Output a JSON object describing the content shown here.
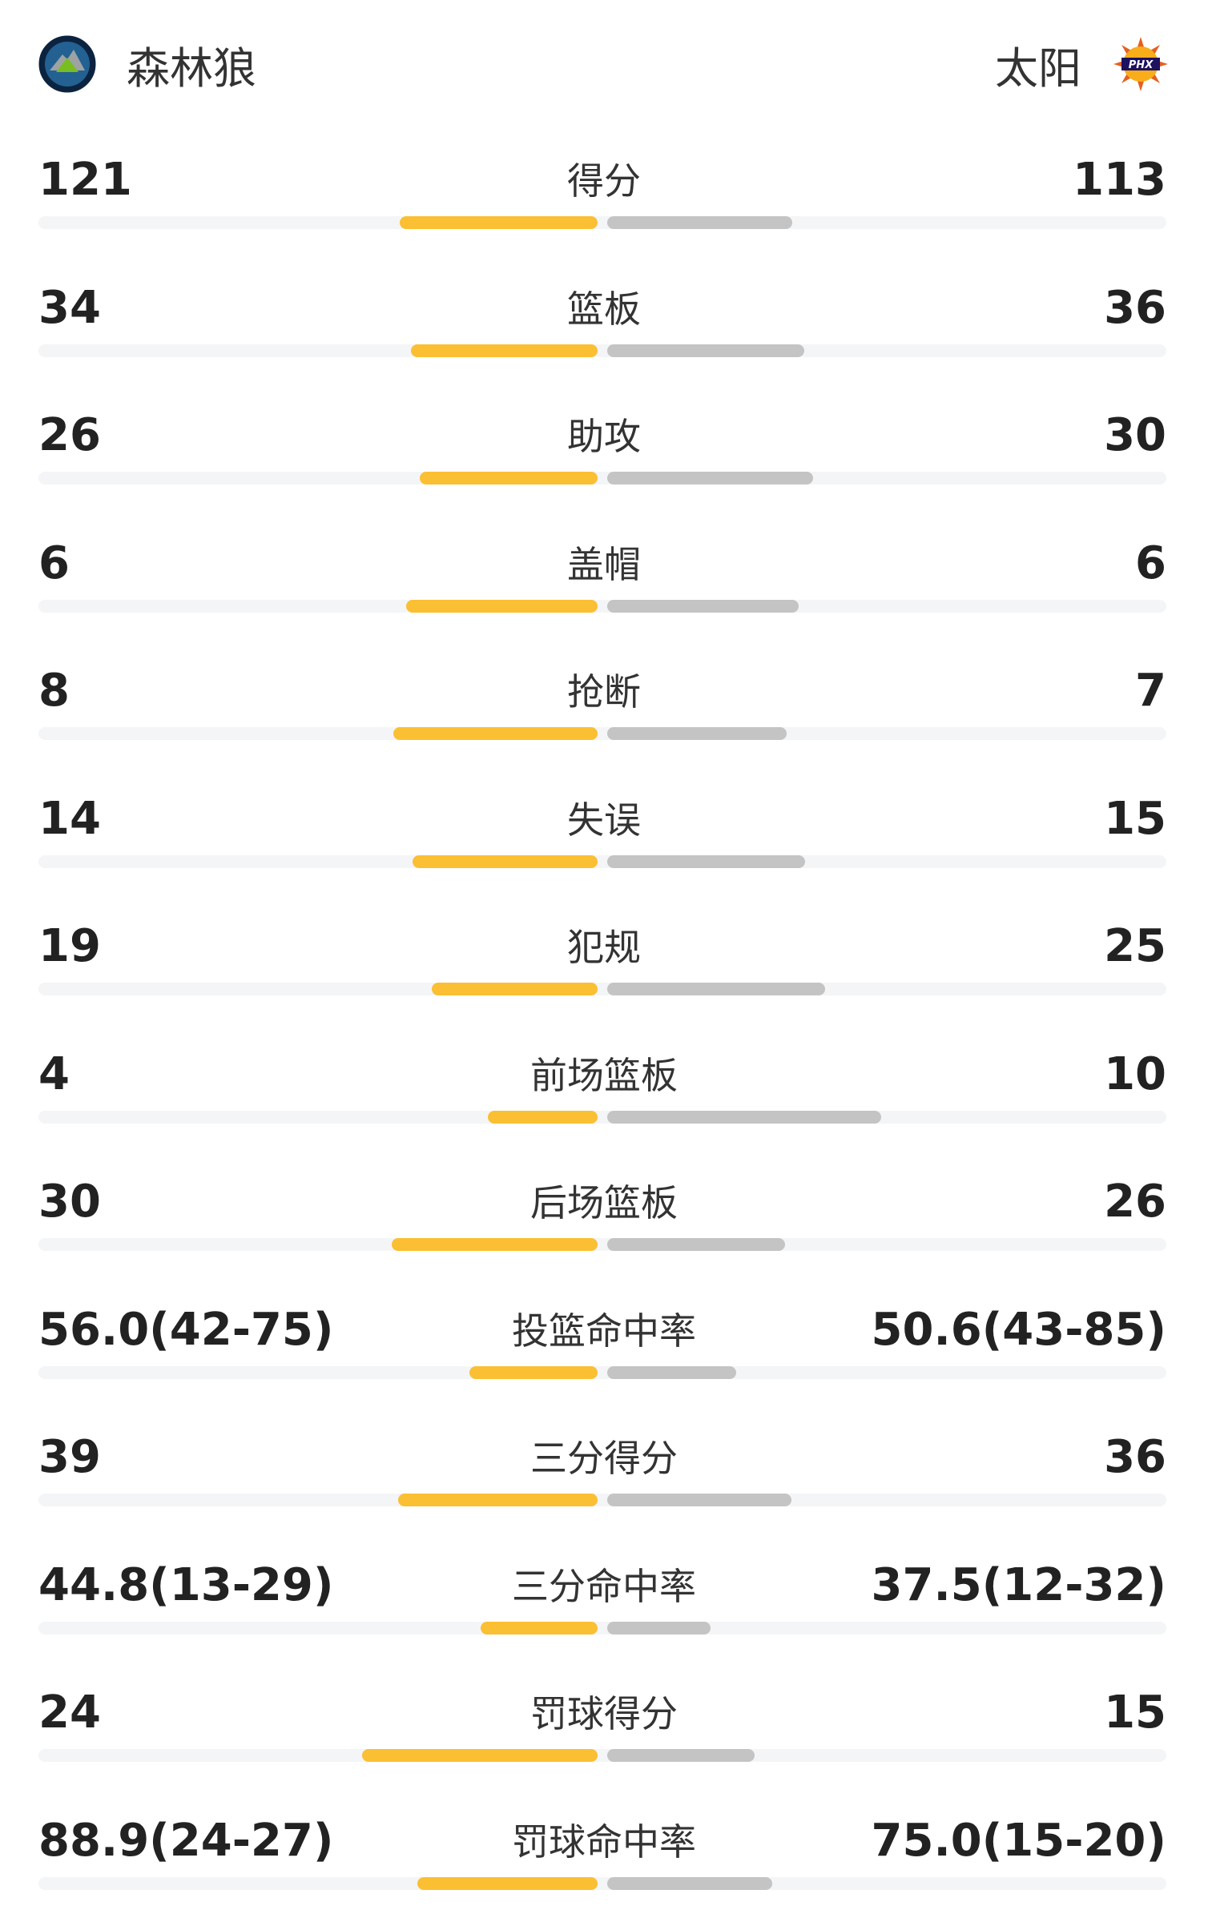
{
  "header": {
    "home_team": "森林狼",
    "away_team": "太阳",
    "home_logo_icon": "timberwolves-logo-icon",
    "away_logo_icon": "suns-logo-icon",
    "away_logo_text": "PHX"
  },
  "colors": {
    "home_bar": "#fbbf33",
    "away_bar": "#c4c4c4",
    "track": "#f4f5f7"
  },
  "stats": [
    {
      "label": "得分",
      "home": "121",
      "away": "113",
      "home_pct": 0.517,
      "away_pct": 0.483
    },
    {
      "label": "篮板",
      "home": "34",
      "away": "36",
      "home_pct": 0.486,
      "away_pct": 0.514
    },
    {
      "label": "助攻",
      "home": "26",
      "away": "30",
      "home_pct": 0.464,
      "away_pct": 0.536
    },
    {
      "label": "盖帽",
      "home": "6",
      "away": "6",
      "home_pct": 0.5,
      "away_pct": 0.5
    },
    {
      "label": "抢断",
      "home": "8",
      "away": "7",
      "home_pct": 0.533,
      "away_pct": 0.467
    },
    {
      "label": "失误",
      "home": "14",
      "away": "15",
      "home_pct": 0.483,
      "away_pct": 0.517
    },
    {
      "label": "犯规",
      "home": "19",
      "away": "25",
      "home_pct": 0.432,
      "away_pct": 0.568
    },
    {
      "label": "前场篮板",
      "home": "4",
      "away": "10",
      "home_pct": 0.286,
      "away_pct": 0.714
    },
    {
      "label": "后场篮板",
      "home": "30",
      "away": "26",
      "home_pct": 0.536,
      "away_pct": 0.464
    },
    {
      "label": "投篮命中率",
      "home": "56.0(42-75)",
      "away": "50.6(43-85)",
      "home_pct": 0.334,
      "away_pct": 0.336
    },
    {
      "label": "三分得分",
      "home": "39",
      "away": "36",
      "home_pct": 0.52,
      "away_pct": 0.48
    },
    {
      "label": "三分命中率",
      "home": "44.8(13-29)",
      "away": "37.5(12-32)",
      "home_pct": 0.306,
      "away_pct": 0.27
    },
    {
      "label": "罚球得分",
      "home": "24",
      "away": "15",
      "home_pct": 0.615,
      "away_pct": 0.385
    },
    {
      "label": "罚球命中率",
      "home": "88.9(24-27)",
      "away": "75.0(15-20)",
      "home_pct": 0.47,
      "away_pct": 0.43
    }
  ]
}
